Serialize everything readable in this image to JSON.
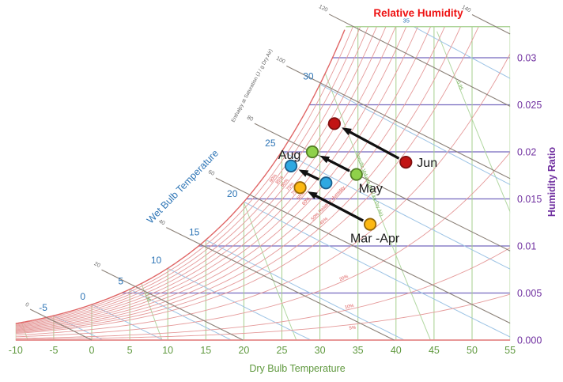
{
  "chart_data": {
    "type": "scatter",
    "chart_kind": "psychrometric-chart",
    "titles": {
      "relative_humidity": "Relative Humidity",
      "humidity_ratio": "Humidity Ratio",
      "dry_bulb": "Dry Bulb Temperature",
      "wet_bulb": "Wet Bulb Temperature",
      "enthalpy": "Enthalpy at Saturation (J / g Dry Air)"
    },
    "x_axis": {
      "label": "Dry Bulb Temperature",
      "min": -10,
      "max": 55,
      "tick_step": 5,
      "ticks": [
        -10,
        -5,
        0,
        5,
        10,
        15,
        20,
        25,
        30,
        35,
        40,
        45,
        50,
        55
      ]
    },
    "y_axis": {
      "label": "Humidity Ratio",
      "min": 0,
      "max": 0.03,
      "position": "right",
      "ticks": [
        {
          "value": 0,
          "label": "0.000"
        },
        {
          "value": 0.005,
          "label": "0.005"
        },
        {
          "value": 0.01,
          "label": "0.01"
        },
        {
          "value": 0.015,
          "label": "0.015"
        },
        {
          "value": 0.02,
          "label": "0.02"
        },
        {
          "value": 0.025,
          "label": "0.025"
        },
        {
          "value": 0.03,
          "label": "0.03"
        }
      ]
    },
    "grid": {
      "relative_humidity_percent": [
        5,
        10,
        20,
        30,
        40,
        45,
        50,
        55,
        60,
        65,
        70,
        75,
        80,
        85,
        90,
        95,
        100
      ],
      "rh_labels": [
        {
          "text": "90%",
          "rh": 90,
          "T": 24
        },
        {
          "text": "85%",
          "rh": 85,
          "T": 24.8
        },
        {
          "text": "80%",
          "rh": 80,
          "T": 25.5
        },
        {
          "text": "75%",
          "rh": 75,
          "T": 26.2
        },
        {
          "text": "70%",
          "rh": 70,
          "T": 26.9
        },
        {
          "text": "65%",
          "rh": 65,
          "T": 27.6
        },
        {
          "text": "60%",
          "rh": 60,
          "T": 28.3
        },
        {
          "text": "50% Relative Humidity",
          "rh": 50,
          "T": 31.2
        },
        {
          "text": "45%",
          "rh": 45,
          "T": 30.6
        },
        {
          "text": "20%",
          "rh": 20,
          "T": 33.2
        },
        {
          "text": "10%",
          "rh": 10,
          "T": 33.9
        },
        {
          "text": "5%",
          "rh": 5,
          "T": 34.3,
          "dy": 8
        }
      ],
      "wet_bulb_celsius": [
        -5,
        0,
        5,
        10,
        15,
        20,
        25,
        30,
        35
      ],
      "enthalpy_j_per_g": [
        0,
        20,
        40,
        60,
        80,
        100,
        120,
        140
      ],
      "specific_volume_m3_per_kg": [
        0.75,
        0.8,
        0.85,
        0.9,
        0.95
      ],
      "specific_volume_labels": [
        {
          "text": "0.80",
          "v": 0.8,
          "w": 0.0045
        },
        {
          "text": "0.95",
          "v": 0.95,
          "w": 0.027
        },
        {
          "text": "Specific Volume (m³ / kg Dry Air)",
          "v": 0.9,
          "w": 0.0165
        }
      ]
    },
    "series": [
      {
        "name": "Jun",
        "fill": "#c21313",
        "stroke": "#7f1010",
        "arrow": true,
        "points": [
          {
            "role": "start",
            "T": 41.3,
            "w": 0.0189
          },
          {
            "role": "end",
            "T": 31.9,
            "w": 0.023
          }
        ],
        "label": {
          "text": "Jun",
          "ref": "start",
          "dx": 14,
          "dy": 6,
          "anchor": "start"
        }
      },
      {
        "name": "May",
        "fill": "#8fd14a",
        "stroke": "#527d26",
        "arrow": true,
        "points": [
          {
            "role": "start",
            "T": 34.8,
            "w": 0.0176
          },
          {
            "role": "end",
            "T": 29,
            "w": 0.02
          }
        ],
        "label": {
          "text": "May",
          "ref": "start",
          "dx": 18,
          "dy": 23,
          "anchor": "middle"
        }
      },
      {
        "name": "Aug",
        "fill": "#2fa8e1",
        "stroke": "#1b5e8c",
        "arrow": true,
        "points": [
          {
            "role": "start",
            "T": 30.8,
            "w": 0.0167
          },
          {
            "role": "end",
            "T": 26.2,
            "w": 0.0185
          }
        ],
        "label": {
          "text": "Aug",
          "ref": "end",
          "dx": -2,
          "dy": -9,
          "anchor": "middle"
        }
      },
      {
        "name": "Mar -Apr",
        "fill": "#fcb813",
        "stroke": "#96690a",
        "arrow": true,
        "points": [
          {
            "role": "start",
            "T": 36.6,
            "w": 0.0123
          },
          {
            "role": "end",
            "T": 27.4,
            "w": 0.0162
          }
        ],
        "label": {
          "text": "Mar -Apr",
          "ref": "start",
          "dx": 6,
          "dy": 23,
          "anchor": "middle"
        }
      }
    ],
    "colors": {
      "rh_curve": "#e59a9a",
      "saturation_line": "#e06666",
      "bottom_axis": "#e58a8a",
      "vertical_grid": "#a5cf8d",
      "horizontal_grid": "#7468be",
      "top_boundary": "#a5cf8d",
      "wet_bulb_line": "#9cc3e5",
      "enthalpy_line": "#8b8178",
      "specific_volume_line": "#b2d8a2",
      "x_tick_text": "#60993f",
      "y_tick_text": "#7030a0",
      "wet_bulb_text": "#2e75b6",
      "enthalpy_text": "#6b6b6b",
      "rh_label_text": "#dd5555",
      "specific_volume_text": "#6fae4e",
      "month_text": "#1a1a1a",
      "arrow": "#111111"
    }
  }
}
